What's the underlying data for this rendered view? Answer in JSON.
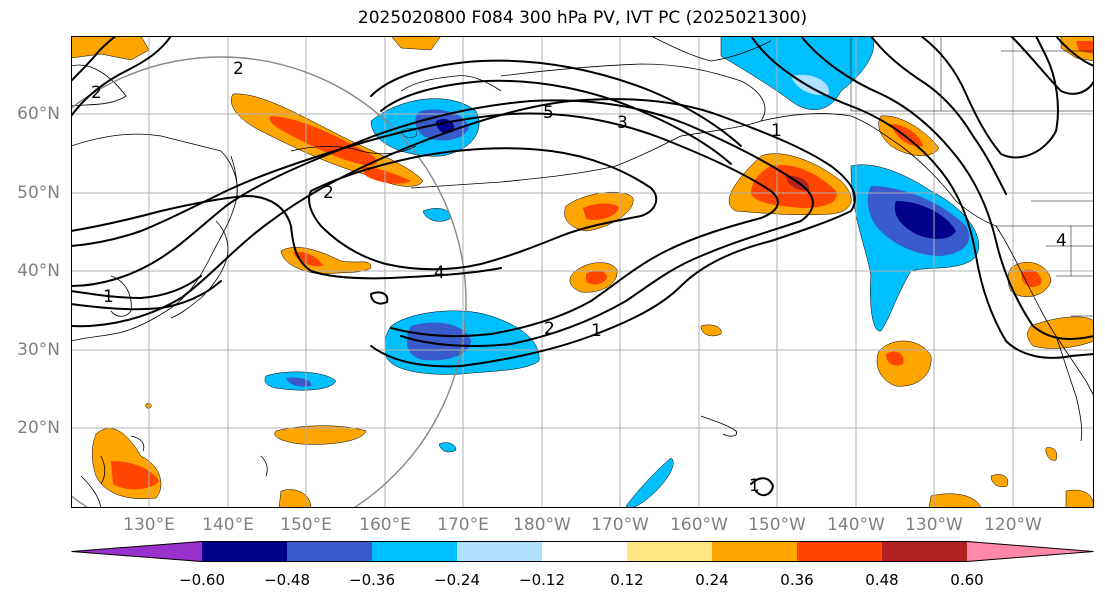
{
  "title": "2025020800 F084 300 hPa PV, IVT PC (2025021300)",
  "lat_labels": [
    "60°N",
    "50°N",
    "40°N",
    "30°N",
    "20°N"
  ],
  "lon_labels": [
    "130°E",
    "140°E",
    "150°E",
    "160°E",
    "170°E",
    "180°W",
    "170°W",
    "160°W",
    "150°W",
    "140°W",
    "130°W",
    "120°W"
  ],
  "contour_labels": [
    "2",
    "2",
    "5",
    "3",
    "1",
    "2",
    "4",
    "2",
    "1",
    "1",
    "4",
    "1"
  ],
  "colorbar": {
    "ticks": [
      "−0.60",
      "−0.48",
      "−0.36",
      "−0.24",
      "−0.12",
      "0.12",
      "0.24",
      "0.36",
      "0.48",
      "0.60"
    ],
    "colors": [
      "#9932cc",
      "#00008b",
      "#3a5bcc",
      "#00bfff",
      "#b0e0ff",
      "#ffffff",
      "#ffe680",
      "#ffa500",
      "#ff4500",
      "#b22222",
      "#ff88aa"
    ]
  },
  "colors": {
    "positive_weak": "#ffa500",
    "positive_mid": "#ff4500",
    "negative_weak": "#00bfff",
    "negative_mid": "#3a5bcc",
    "negative_strong": "#00008b",
    "grid": "#b0b0b0",
    "circle": "#888888"
  }
}
